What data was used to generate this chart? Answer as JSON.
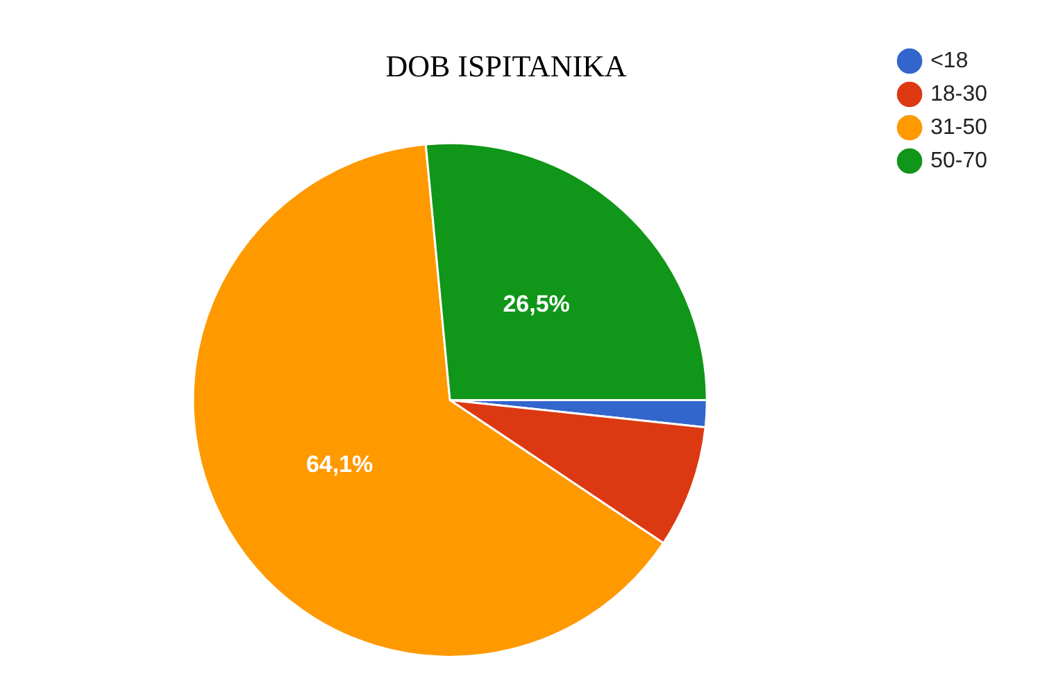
{
  "chart_data": {
    "type": "pie",
    "title": "DOB ISPITANIKA",
    "categories": [
      "<18",
      "18-30",
      "31-50",
      "50-70"
    ],
    "values": [
      1.7,
      7.7,
      64.1,
      26.5
    ],
    "value_labels": [
      null,
      null,
      "64,1%",
      "26,5%"
    ],
    "colors": [
      "#3366cc",
      "#dc3912",
      "#ff9900",
      "#109618"
    ],
    "legend": "top right"
  }
}
